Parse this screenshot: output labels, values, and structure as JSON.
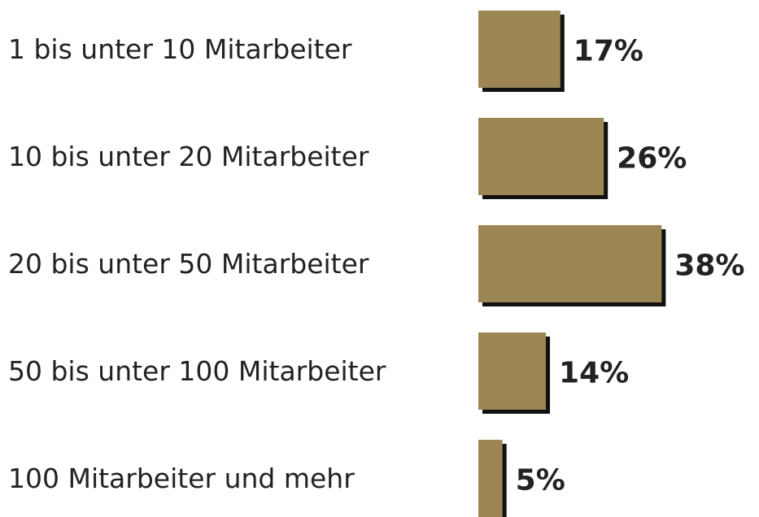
{
  "chart_data": {
    "type": "bar",
    "orientation": "horizontal",
    "categories": [
      "1 bis unter 10 Mitarbeiter",
      "10 bis unter 20 Mitarbeiter",
      "20 bis unter 50 Mitarbeiter",
      "50 bis unter 100 Mitarbeiter",
      "100 Mitarbeiter und mehr"
    ],
    "values": [
      17,
      26,
      38,
      14,
      5
    ],
    "value_labels": [
      "17%",
      "26%",
      "38%",
      "14%",
      "5%"
    ],
    "color": "#9b8654"
  }
}
